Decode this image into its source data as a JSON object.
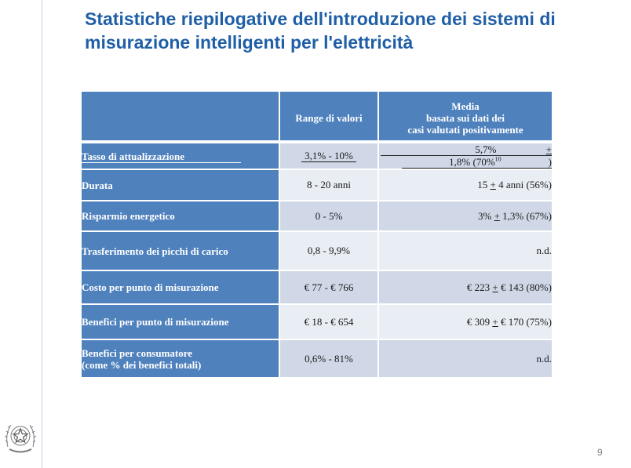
{
  "slide": {
    "title_line1": "Statistiche riepilogative dell'introduzione dei sistemi di",
    "title_line2": "misurazione intelligenti per l'elettricità",
    "page_number": "9",
    "emblem_icon": "italian-republic-emblem-icon",
    "accent_color": "#1f5fa7",
    "table_header_color": "#4f81bd"
  },
  "table": {
    "headers": {
      "col1": "",
      "col2": "Range di valori",
      "col3_line1": "Media",
      "col3_line2": "basata sui dati dei",
      "col3_line3": "casi valutati positivamente"
    },
    "rows": [
      {
        "label": "Tasso di attualizzazione",
        "range": "3,1% - 10%",
        "mean_a": "5,7% ",
        "pm": "+",
        "mean_b": " 1,8% (70%",
        "sup": "10",
        "mean_c": ")"
      },
      {
        "label": "Durata",
        "range": "8 - 20 anni",
        "mean_a": "15 ",
        "pm": "+",
        "mean_b": " 4 anni (56%)"
      },
      {
        "label": "Risparmio energetico",
        "range": "0 - 5%",
        "mean_a": "3% ",
        "pm": "+",
        "mean_b": " 1,3% (67%)"
      },
      {
        "label": "Trasferimento dei picchi di carico",
        "range": "0,8 - 9,9%",
        "mean": "n.d."
      },
      {
        "label": "Costo per punto di misurazione",
        "range": "€ 77 - € 766",
        "mean_a": "€ 223 ",
        "pm": "+",
        "mean_b": " € 143 (80%)"
      },
      {
        "label": "Benefici per punto di misurazione",
        "range": "€ 18 - € 654",
        "mean_a": "€ 309 ",
        "pm": "+",
        "mean_b": " € 170 (75%)"
      },
      {
        "label_line1": "Benefici per consumatore",
        "label_line2": "(come % dei benefici totali)",
        "range": "0,6% - 81%",
        "mean": "n.d."
      }
    ]
  }
}
